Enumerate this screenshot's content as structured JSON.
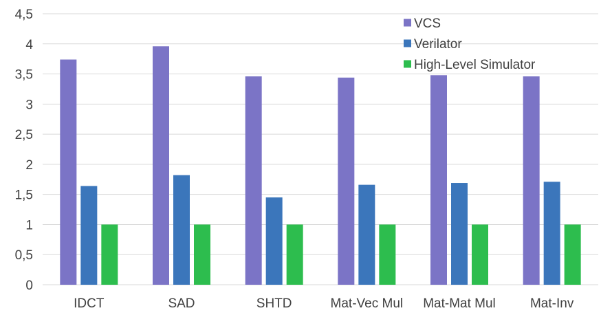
{
  "chart_data": {
    "type": "bar",
    "title": "",
    "xlabel": "",
    "ylabel": "",
    "categories": [
      "IDCT",
      "SAD",
      "SHTD",
      "Mat-Vec Mul",
      "Mat-Mat Mul",
      "Mat-Inv"
    ],
    "ylim": [
      0,
      4.5
    ],
    "yticks": [
      0,
      0.5,
      1,
      1.5,
      2,
      2.5,
      3,
      3.5,
      4,
      4.5
    ],
    "ytick_labels": [
      "0",
      "0,5",
      "1",
      "1,5",
      "2",
      "2,5",
      "3",
      "3,5",
      "4",
      "4,5"
    ],
    "grid": true,
    "legend_position": "top-right",
    "series": [
      {
        "name": "VCS",
        "color": "#7b74c6",
        "values": [
          3.74,
          3.96,
          3.46,
          3.44,
          3.48,
          3.46
        ]
      },
      {
        "name": "Verilator",
        "color": "#3b76bb",
        "values": [
          1.64,
          1.82,
          1.45,
          1.66,
          1.69,
          1.71
        ]
      },
      {
        "name": "High-Level Simulator",
        "color": "#2dbd4e",
        "values": [
          1,
          1,
          1,
          1,
          1,
          1
        ]
      }
    ]
  }
}
